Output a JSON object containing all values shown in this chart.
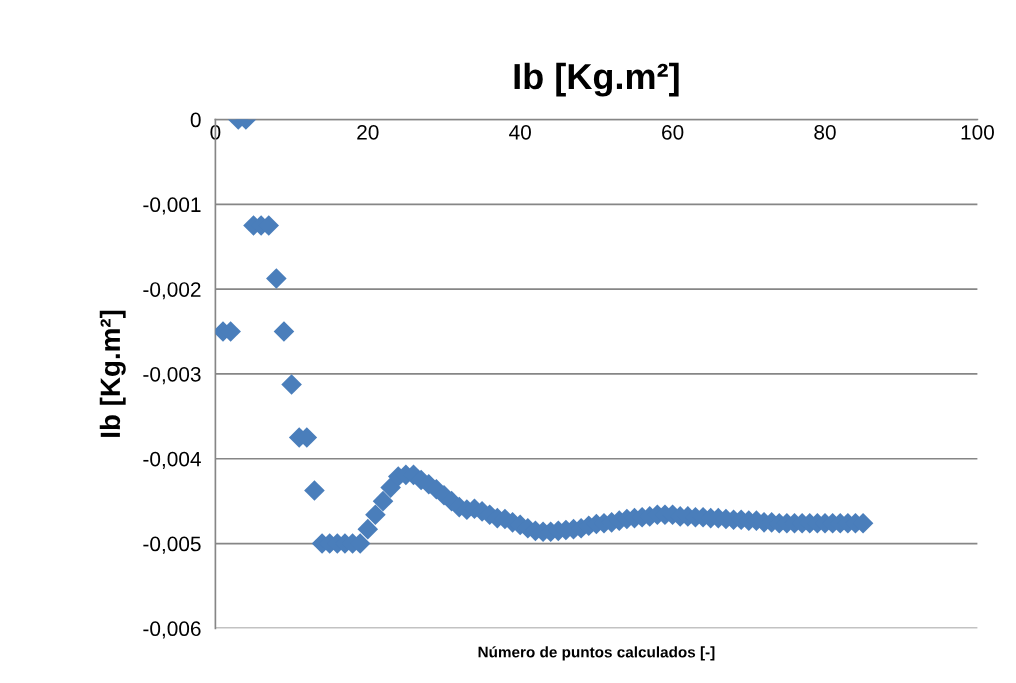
{
  "chart_data": {
    "type": "scatter",
    "title": "Ib [Kg.m²]",
    "xlabel": "Número de puntos calculados [-]",
    "ylabel": "Ib [Kg.m²]",
    "x": [
      1,
      2,
      3,
      4,
      5,
      6,
      7,
      8,
      9,
      10,
      11,
      12,
      13,
      14,
      15,
      16,
      17,
      18,
      19,
      20,
      21,
      22,
      23,
      24,
      25,
      26,
      27,
      28,
      29,
      30,
      31,
      32,
      33,
      34,
      35,
      36,
      37,
      38,
      39,
      40,
      41,
      42,
      43,
      44,
      45,
      46,
      47,
      48,
      49,
      50,
      51,
      52,
      53,
      54,
      55,
      56,
      57,
      58,
      59,
      60,
      61,
      62,
      63,
      64,
      65,
      66,
      67,
      68,
      69,
      70,
      71,
      72,
      73,
      74,
      75,
      76,
      77,
      78,
      79,
      80,
      81,
      82,
      83,
      84,
      85
    ],
    "values": [
      -0.0025,
      -0.0025,
      0,
      0,
      -0.00125,
      -0.00125,
      -0.00125,
      -0.001875,
      -0.0025,
      -0.003125,
      -0.00375,
      -0.00375,
      -0.004375,
      -0.005,
      -0.005,
      -0.005,
      -0.005,
      -0.005,
      -0.005,
      -0.00483,
      -0.00466,
      -0.0045,
      -0.00434,
      -0.00421,
      -0.00419,
      -0.00419,
      -0.00425,
      -0.0043,
      -0.00436,
      -0.00443,
      -0.0045,
      -0.00457,
      -0.0046,
      -0.00459,
      -0.00462,
      -0.00466,
      -0.0047,
      -0.00471,
      -0.00475,
      -0.00478,
      -0.00482,
      -0.00485,
      -0.00486,
      -0.00486,
      -0.00485,
      -0.00484,
      -0.00483,
      -0.00482,
      -0.00479,
      -0.00477,
      -0.00476,
      -0.00475,
      -0.00473,
      -0.00471,
      -0.0047,
      -0.00469,
      -0.00468,
      -0.00466,
      -0.00466,
      -0.00466,
      -0.00468,
      -0.00468,
      -0.00469,
      -0.00469,
      -0.0047,
      -0.0047,
      -0.00471,
      -0.00472,
      -0.00472,
      -0.00473,
      -0.00473,
      -0.00475,
      -0.00475,
      -0.00476,
      -0.00476,
      -0.00476,
      -0.00476,
      -0.00476,
      -0.00476,
      -0.00476,
      -0.00476,
      -0.00476,
      -0.00476,
      -0.00476,
      -0.00476
    ],
    "color": "#4a7ebb",
    "marker": "diamond",
    "grid": "y",
    "xlim": [
      0,
      100
    ],
    "xticks": [
      0,
      20,
      40,
      60,
      80,
      100
    ],
    "ylim": [
      -0.006,
      0
    ],
    "yticks": [
      {
        "value": -0.006,
        "label": "-0,006"
      },
      {
        "value": -0.005,
        "label": "-0,005"
      },
      {
        "value": -0.004,
        "label": "-0,004"
      },
      {
        "value": -0.003,
        "label": "-0,003"
      },
      {
        "value": -0.002,
        "label": "-0,002"
      },
      {
        "value": -0.001,
        "label": "-0,001"
      },
      0
    ]
  }
}
